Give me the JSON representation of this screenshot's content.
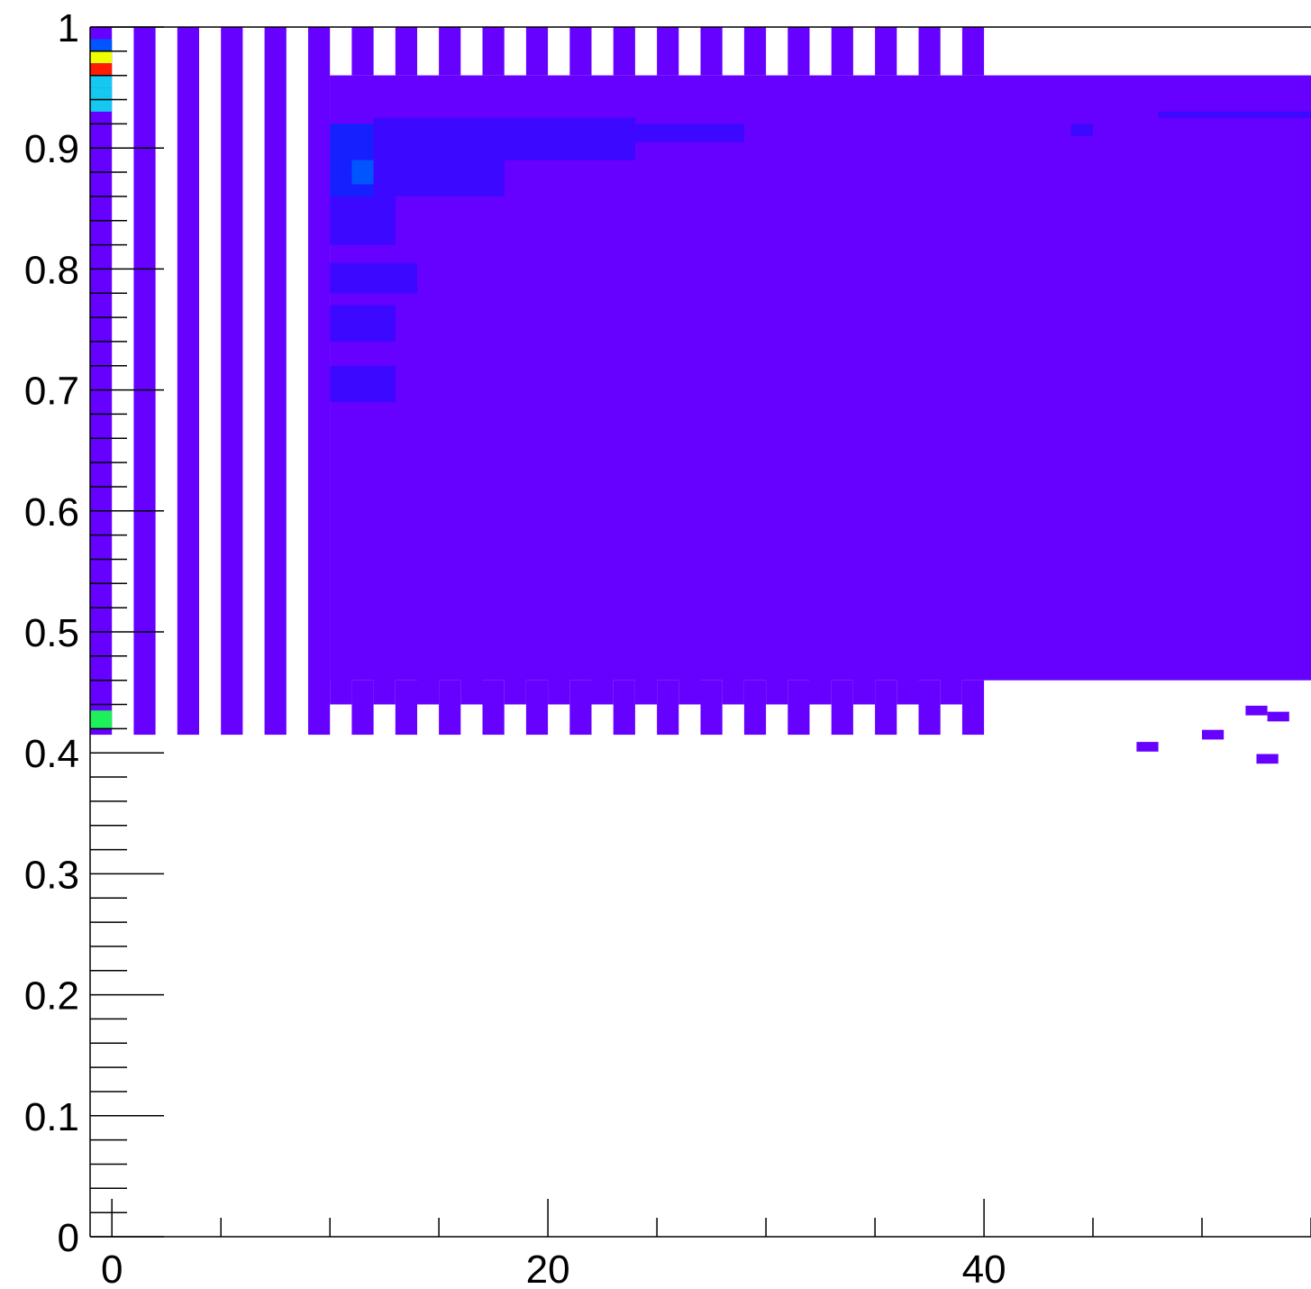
{
  "chart_data": {
    "type": "heatmap",
    "title": "",
    "xlabel": "",
    "ylabel": "",
    "xlim": [
      -1,
      55
    ],
    "ylim": [
      0,
      1
    ],
    "x_ticks": [
      "0",
      "20",
      "40"
    ],
    "y_ticks": [
      "0",
      "0.1",
      "0.2",
      "0.3",
      "0.4",
      "0.5",
      "0.6",
      "0.7",
      "0.8",
      "0.9",
      "1"
    ],
    "grid": false,
    "bin_width_x": 1,
    "bin_width_y": 0.01,
    "colors": {
      "low": "#6600ff",
      "mid_low": "#3d08ff",
      "mid": "#1620ff",
      "blue": "#0055ff",
      "cyan": "#14c8f0",
      "green": "#1ef05a",
      "yellow": "#f0ff00",
      "red": "#ff1a00"
    },
    "columns_sparse_x": [
      1,
      3,
      5,
      7,
      9
    ],
    "columns_alternating_x": [
      11,
      13,
      15,
      17,
      19,
      21,
      23,
      25,
      27,
      29,
      31,
      33,
      35,
      37,
      39
    ],
    "regions": [
      {
        "x": [
          -1,
          0
        ],
        "y": [
          0.415,
          1.0
        ],
        "level": "low"
      },
      {
        "x": [
          10,
          55
        ],
        "y": [
          0.46,
          0.96
        ],
        "level": "low"
      },
      {
        "x": [
          40,
          55
        ],
        "y": [
          0.47,
          0.96
        ],
        "level": "low"
      }
    ],
    "hot_cells": [
      {
        "x": -0.5,
        "y": 0.985,
        "level": "blue"
      },
      {
        "x": -0.5,
        "y": 0.975,
        "level": "yellow"
      },
      {
        "x": -0.5,
        "y": 0.965,
        "level": "red"
      },
      {
        "x": -0.5,
        "y": 0.955,
        "level": "cyan"
      },
      {
        "x": -0.5,
        "y": 0.945,
        "level": "cyan"
      },
      {
        "x": -0.5,
        "y": 0.935,
        "level": "cyan"
      },
      {
        "x": -0.5,
        "y": 0.43,
        "level": "green"
      },
      {
        "x": -0.5,
        "y": 0.425,
        "level": "green"
      }
    ],
    "blue_patches": [
      {
        "x": [
          10,
          12
        ],
        "y": [
          0.86,
          0.92
        ],
        "level": "mid"
      },
      {
        "x": [
          11,
          12
        ],
        "y": [
          0.87,
          0.89
        ],
        "level": "blue"
      },
      {
        "x": [
          12,
          24
        ],
        "y": [
          0.89,
          0.925
        ],
        "level": "mid_low"
      },
      {
        "x": [
          12,
          18
        ],
        "y": [
          0.86,
          0.89
        ],
        "level": "mid_low"
      },
      {
        "x": [
          10,
          13
        ],
        "y": [
          0.82,
          0.86
        ],
        "level": "mid_low"
      },
      {
        "x": [
          10,
          14
        ],
        "y": [
          0.78,
          0.805
        ],
        "level": "mid_low"
      },
      {
        "x": [
          10,
          13
        ],
        "y": [
          0.74,
          0.77
        ],
        "level": "mid_low"
      },
      {
        "x": [
          10,
          13
        ],
        "y": [
          0.69,
          0.72
        ],
        "level": "mid_low"
      },
      {
        "x": [
          18,
          20
        ],
        "y": [
          0.905,
          0.915
        ],
        "level": "mid_low"
      },
      {
        "x": [
          24,
          29
        ],
        "y": [
          0.905,
          0.92
        ],
        "level": "mid_low"
      },
      {
        "x": [
          44,
          45
        ],
        "y": [
          0.91,
          0.92
        ],
        "level": "mid_low"
      },
      {
        "x": [
          48,
          55
        ],
        "y": [
          0.925,
          0.93
        ],
        "level": "mid_low"
      }
    ],
    "sparse_cells": [
      {
        "x": 47.5,
        "y": 0.405,
        "level": "low"
      },
      {
        "x": 50.5,
        "y": 0.415,
        "level": "low"
      },
      {
        "x": 53.0,
        "y": 0.395,
        "level": "low"
      },
      {
        "x": 52.5,
        "y": 0.435,
        "level": "low"
      },
      {
        "x": 53.5,
        "y": 0.43,
        "level": "low"
      }
    ]
  }
}
